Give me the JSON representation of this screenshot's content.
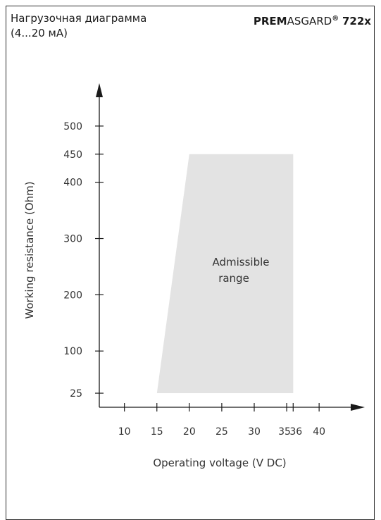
{
  "header": {
    "title_line1": "Нагрузочная диаграмма",
    "title_line2": "(4...20 мА)",
    "brand_bold": "PREM",
    "brand_regular": "ASGARD",
    "brand_mark": "®",
    "brand_model": "722x"
  },
  "chart_data": {
    "type": "area",
    "title": "Нагрузочная диаграмма (4...20 мА)",
    "xlabel": "Operating voltage  (V DC)",
    "ylabel": "Working resistance  (Ohm)",
    "x_ticks": [
      10,
      15,
      20,
      25,
      30,
      35,
      36,
      40
    ],
    "y_ticks": [
      25,
      100,
      200,
      300,
      400,
      450,
      500
    ],
    "xlim": [
      4.5,
      44
    ],
    "ylim": [
      0,
      560
    ],
    "grid": false,
    "legend": "none",
    "region": {
      "label": "Admissible range",
      "label_line1": "Admissible",
      "label_line2": "range",
      "color": "#e3e3e3",
      "points": [
        [
          15,
          25
        ],
        [
          20,
          450
        ],
        [
          36,
          450
        ],
        [
          36,
          25
        ]
      ]
    }
  }
}
